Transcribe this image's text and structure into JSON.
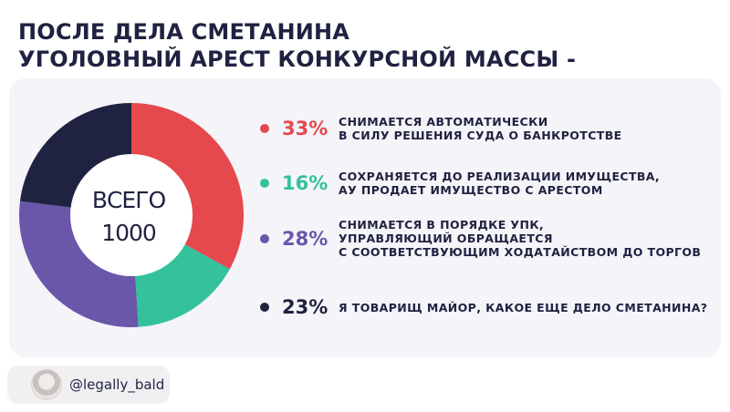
{
  "title": {
    "line1": "ПОСЛЕ ДЕЛА СМЕТАНИНА",
    "line2": "УГОЛОВНЫЙ АРЕСТ КОНКУРСНОЙ МАССЫ -"
  },
  "center": {
    "line1": "ВСЕГО",
    "line2": "1000"
  },
  "footer": {
    "handle": "@legally_bald"
  },
  "chart_data": {
    "type": "pie",
    "donut": true,
    "total": 1000,
    "slices": [
      {
        "percent": 33,
        "label": "33%",
        "color": "#e5494d",
        "lines": [
          "СНИМАЕТСЯ АВТОМАТИЧЕСКИ",
          "В СИЛУ РЕШЕНИЯ СУДА О БАНКРОТСТВЕ"
        ]
      },
      {
        "percent": 16,
        "label": "16%",
        "color": "#33c29c",
        "lines": [
          "СОХРАНЯЕТСЯ ДО РЕАЛИЗАЦИИ ИМУЩЕСТВА,",
          "АУ ПРОДАЕТ ИМУЩЕСТВО С АРЕСТОМ"
        ]
      },
      {
        "percent": 28,
        "label": "28%",
        "color": "#6a57aa",
        "lines": [
          "СНИМАЕТСЯ В ПОРЯДКЕ УПК,",
          "УПРАВЛЯЮЩИЙ ОБРАЩАЕТСЯ",
          "С СООТВЕТСТВУЮЩИМ ХОДАТАЙСТВОМ ДО ТОРГОВ"
        ]
      },
      {
        "percent": 23,
        "label": "23%",
        "color": "#1f2240",
        "lines": [
          "Я ТОВАРИЩ МАЙОР, КАКОЕ ЕЩЕ ДЕЛО СМЕТАНИНА?"
        ]
      }
    ]
  }
}
